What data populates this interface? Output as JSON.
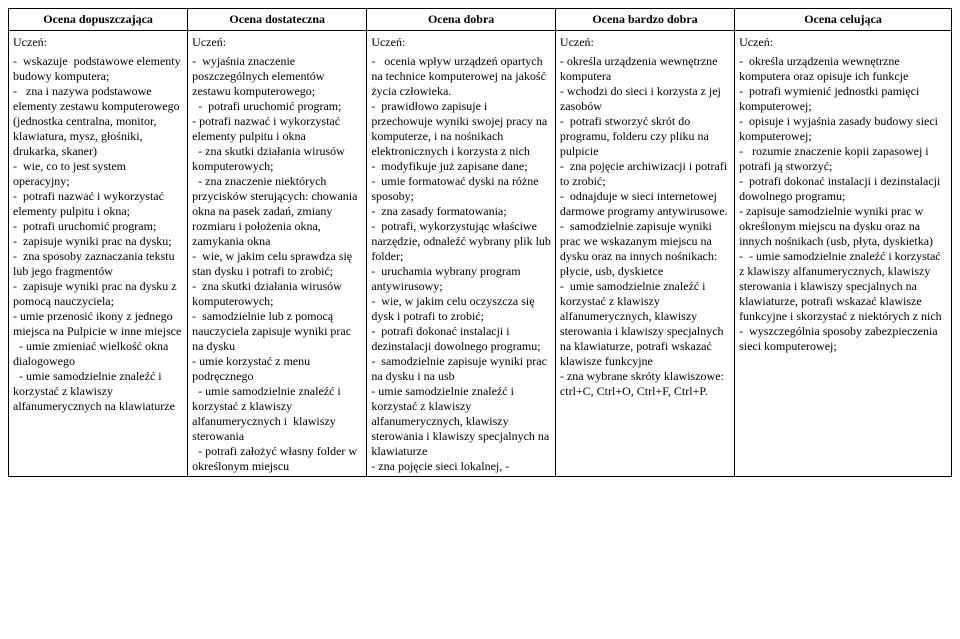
{
  "columns": [
    {
      "header": "Ocena dopuszczająca",
      "width": "19%"
    },
    {
      "header": "Ocena dostateczna",
      "width": "19%"
    },
    {
      "header": "Ocena dobra",
      "width": "20%"
    },
    {
      "header": "Ocena bardzo dobra",
      "width": "19%"
    },
    {
      "header": "Ocena celująca",
      "width": "23%"
    }
  ],
  "uczen_label": "Uczeń:",
  "cells": [
    "-  wskazuje  podstawowe elementy budowy komputera;\n-   zna i nazywa podstawowe elementy zestawu komputerowego (jednostka centralna, monitor, klawiatura, mysz, głośniki, drukarka, skaner)\n-  wie, co to jest system operacyjny;\n-  potrafi nazwać i wykorzystać elementy pulpitu i okna;\n-  potrafi uruchomić program;\n-  zapisuje wyniki prac na dysku;\n-  zna sposoby zaznaczania tekstu lub jego fragmentów\n-  zapisuje wyniki prac na dysku z pomocą nauczyciela;\n- umie przenosić ikony z jednego miejsca na Pulpicie w inne miejsce\n  - umie zmieniać wielkość okna dialogowego\n  - umie samodzielnie znaleźć i korzystać z klawiszy alfanumerycznych na klawiaturze",
    "-  wyjaśnia znaczenie poszczególnych elementów zestawu komputerowego;\n  -  potrafi uruchomić program;\n- potrafi nazwać i wykorzystać elementy pulpitu i okna\n  - zna skutki działania wirusów komputerowych;\n  - zna znaczenie niektórych przycisków sterujących: chowania okna na pasek zadań, zmiany rozmiaru i położenia okna, zamykania okna\n-  wie, w jakim celu sprawdza się stan dysku i potrafi to zrobić;\n-  zna skutki działania wirusów komputerowych;\n-  samodzielnie lub z pomocą nauczyciela zapisuje wyniki prac na dysku\n- umie korzystać z menu podręcznego\n  - umie samodzielnie znaleźć i korzystać z klawiszy alfanumerycznych i  klawiszy sterowania\n  - potrafi założyć własny folder w określonym miejscu",
    "-   ocenia wpływ urządzeń opartych na technice komputerowej na jakość życia człowieka.\n-  prawidłowo zapisuje i przechowuje wyniki swojej pracy na komputerze, i na nośnikach elektronicznych i korzysta z nich\n-  modyfikuje już zapisane dane;\n-  umie formatować dyski na różne sposoby;\n-  zna zasady formatowania;\n-  potrafi, wykorzystując właściwe narzędzie, odnaleźć wybrany plik lub folder;\n-  uruchamia wybrany program antywirusowy;\n-  wie, w jakim celu oczyszcza się dysk i potrafi to zrobić;\n-  potrafi dokonać instalacji i dezinstalacji dowolnego programu;\n-  samodzielnie zapisuje wyniki prac na dysku i na usb\n- umie samodzielnie znaleźć i korzystać z klawiszy alfanumerycznych, klawiszy sterowania i klawiszy specjalnych na klawiaturze\n- zna pojęcie sieci lokalnej, -",
    "- określa urządzenia wewnętrzne komputera\n- wchodzi do sieci i korzysta z jej zasobów\n-  potrafi stworzyć skrót do programu, folderu czy pliku na pulpicie\n-  zna pojęcie archiwizacji i potrafi to zrobić;\n-  odnajduje w sieci internetowej darmowe programy antywirusowe.\n-  samodzielnie zapisuje wyniki prac we wskazanym miejscu na dysku oraz na innych nośnikach: płycie, usb, dyskietce\n-  umie samodzielnie znaleźć i korzystać z klawiszy alfanumerycznych, klawiszy sterowania i klawiszy specjalnych na klawiaturze, potrafi wskazać klawisze funkcyjne\n- zna wybrane skróty klawiszowe: ctrl+C, Ctrl+O, Ctrl+F, Ctrl+P.",
    "-  określa urządzenia wewnętrzne komputera oraz opisuje ich funkcje\n-  potrafi wymienić jednostki pamięci komputerowej;\n-  opisuje i wyjaśnia zasady budowy sieci komputerowej;\n-   rozumie znaczenie kopii zapasowej i potrafi ją stworzyć;\n-  potrafi dokonać instalacji i dezinstalacji dowolnego programu;\n- zapisuje samodzielnie wyniki prac w określonym miejscu na dysku oraz na innych nośnikach (usb, płyta, dyskietka)\n-  - umie samodzielnie znaleźć i korzystać z klawiszy alfanumerycznych, klawiszy sterowania i klawiszy specjalnych na klawiaturze, potrafi wskazać klawisze funkcyjne i skorzystać z niektórych z nich\n-  wyszczególnia sposoby zabezpieczenia sieci komputerowej;"
  ]
}
